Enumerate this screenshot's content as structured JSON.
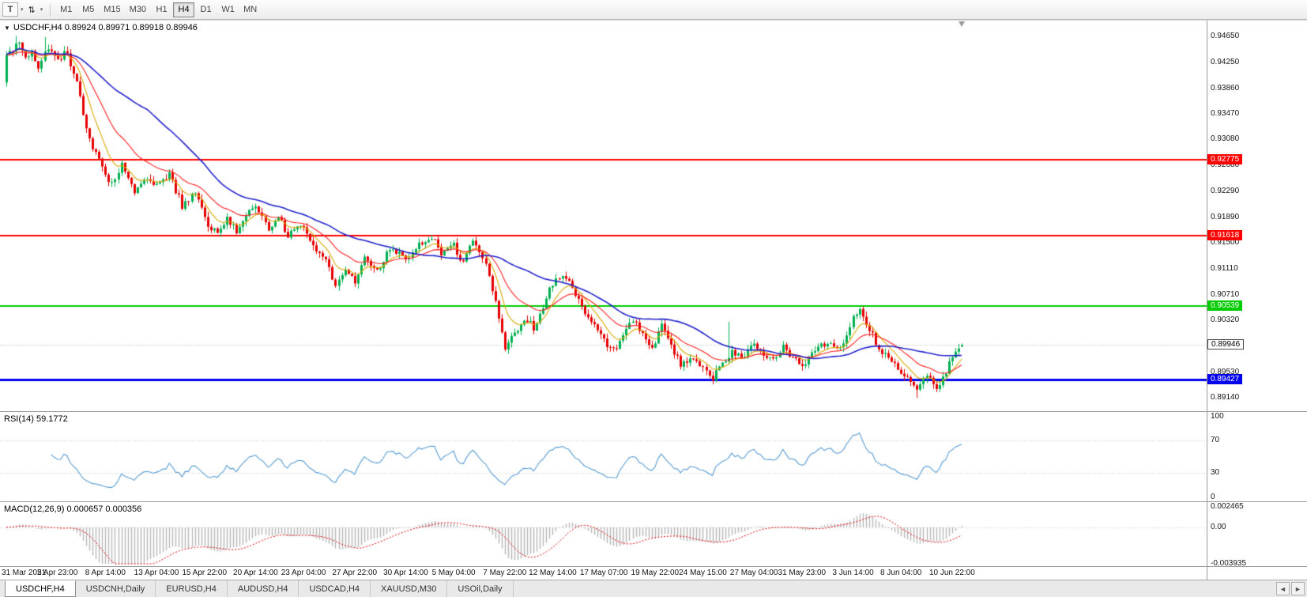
{
  "toolbar": {
    "icons": [
      {
        "name": "letter-t-icon",
        "glyph": "T"
      },
      {
        "name": "chart-tools-icon",
        "glyph": "⇅"
      }
    ],
    "timeframes": [
      "M1",
      "M5",
      "M15",
      "M30",
      "H1",
      "H4",
      "D1",
      "W1",
      "MN"
    ],
    "selected_timeframe": "H4"
  },
  "tabs": [
    "USDCHF,H4",
    "USDCNH,Daily",
    "EURUSD,H4",
    "AUDUSD,H4",
    "USDCAD,H4",
    "XAUUSD,M30",
    "USOil,Daily"
  ],
  "active_tab": "USDCHF,H4",
  "tab_scroll": {
    "left": "◄",
    "right": "►"
  },
  "chart_data": {
    "type": "candlestick",
    "symbol": "USDCHF",
    "timeframe": "H4",
    "title": "USDCHF,H4  0.89924 0.89971 0.89918 0.89946",
    "ohlc": {
      "open": 0.89924,
      "high": 0.89971,
      "low": 0.89918,
      "close": 0.89946
    },
    "current_price": 0.89946,
    "current_price_label": "0.89946",
    "price_axis_labels": [
      "0.94650",
      "0.94250",
      "0.93860",
      "0.93470",
      "0.93080",
      "0.92680",
      "0.92290",
      "0.91890",
      "0.91500",
      "0.91110",
      "0.90710",
      "0.90320",
      "0.89530",
      "0.89140"
    ],
    "price_range": [
      0.8894,
      0.9489
    ],
    "horizontal_lines": [
      {
        "price": 0.92775,
        "label": "0.92775",
        "color": "#ff0000",
        "width": 2
      },
      {
        "price": 0.91618,
        "label": "0.91618",
        "color": "#ff0000",
        "width": 2
      },
      {
        "price": 0.90539,
        "label": "0.90539",
        "color": "#00cc00",
        "width": 2
      },
      {
        "price": 0.89427,
        "label": "0.89427",
        "color": "#0000ee",
        "width": 3
      }
    ],
    "bar_count": 300,
    "shift_ratio": 0.797,
    "up_color": "#00b050",
    "down_color": "#e60000",
    "moving_averages": [
      {
        "period": 8,
        "type": "ema",
        "color": "#d9a800"
      },
      {
        "period": 20,
        "type": "ema",
        "color": "#ff2020"
      },
      {
        "period": 45,
        "type": "sma",
        "color": "#2222cc"
      }
    ],
    "price_path": [
      [
        0,
        0.9435
      ],
      [
        2,
        0.9446
      ],
      [
        4,
        0.9452
      ],
      [
        6,
        0.9428
      ],
      [
        8,
        0.9444
      ],
      [
        10,
        0.9418
      ],
      [
        13,
        0.9448
      ],
      [
        16,
        0.9432
      ],
      [
        19,
        0.944
      ],
      [
        22,
        0.9393
      ],
      [
        26,
        0.9308
      ],
      [
        30,
        0.9262
      ],
      [
        33,
        0.924
      ],
      [
        36,
        0.9268
      ],
      [
        40,
        0.9226
      ],
      [
        44,
        0.9252
      ],
      [
        47,
        0.9236
      ],
      [
        51,
        0.9256
      ],
      [
        55,
        0.9206
      ],
      [
        59,
        0.9226
      ],
      [
        62,
        0.9186
      ],
      [
        66,
        0.9162
      ],
      [
        69,
        0.919
      ],
      [
        72,
        0.9166
      ],
      [
        75,
        0.919
      ],
      [
        78,
        0.9206
      ],
      [
        82,
        0.9172
      ],
      [
        85,
        0.9192
      ],
      [
        88,
        0.9162
      ],
      [
        93,
        0.9176
      ],
      [
        96,
        0.915
      ],
      [
        100,
        0.912
      ],
      [
        103,
        0.9086
      ],
      [
        106,
        0.911
      ],
      [
        109,
        0.9092
      ],
      [
        112,
        0.913
      ],
      [
        116,
        0.9106
      ],
      [
        120,
        0.9142
      ],
      [
        125,
        0.9126
      ],
      [
        129,
        0.915
      ],
      [
        133,
        0.916
      ],
      [
        136,
        0.9132
      ],
      [
        140,
        0.9146
      ],
      [
        143,
        0.912
      ],
      [
        146,
        0.9156
      ],
      [
        149,
        0.913
      ],
      [
        152,
        0.908
      ],
      [
        156,
        0.8992
      ],
      [
        159,
        0.9012
      ],
      [
        162,
        0.9036
      ],
      [
        165,
        0.9022
      ],
      [
        168,
        0.9052
      ],
      [
        171,
        0.909
      ],
      [
        174,
        0.9104
      ],
      [
        177,
        0.908
      ],
      [
        180,
        0.9052
      ],
      [
        183,
        0.9032
      ],
      [
        187,
        0.9002
      ],
      [
        190,
        0.8986
      ],
      [
        193,
        0.9012
      ],
      [
        196,
        0.9032
      ],
      [
        199,
        0.9012
      ],
      [
        202,
        0.8992
      ],
      [
        205,
        0.9022
      ],
      [
        208,
        0.8996
      ],
      [
        211,
        0.8962
      ],
      [
        214,
        0.8976
      ],
      [
        218,
        0.8956
      ],
      [
        221,
        0.8946
      ],
      [
        224,
        0.8966
      ],
      [
        227,
        0.8986
      ],
      [
        230,
        0.8976
      ],
      [
        234,
        0.8996
      ],
      [
        237,
        0.8982
      ],
      [
        240,
        0.8972
      ],
      [
        243,
        0.899
      ],
      [
        246,
        0.8976
      ],
      [
        249,
        0.8962
      ],
      [
        252,
        0.8986
      ],
      [
        255,
        0.8996
      ],
      [
        258,
        0.9
      ],
      [
        261,
        0.8986
      ],
      [
        265,
        0.904
      ],
      [
        267,
        0.9052
      ],
      [
        270,
        0.902
      ],
      [
        273,
        0.899
      ],
      [
        276,
        0.8972
      ],
      [
        280,
        0.8956
      ],
      [
        283,
        0.8936
      ],
      [
        285,
        0.8922
      ],
      [
        288,
        0.895
      ],
      [
        291,
        0.8932
      ],
      [
        293,
        0.8946
      ],
      [
        296,
        0.8976
      ],
      [
        298,
        0.899
      ],
      [
        299,
        0.89946
      ]
    ],
    "wick_marks": [
      {
        "bar": 3,
        "type": "high",
        "price": 0.94655
      },
      {
        "bar": 12,
        "type": "high",
        "price": 0.9464
      },
      {
        "bar": 156,
        "type": "low",
        "price": 0.8985
      },
      {
        "bar": 226,
        "type": "high",
        "price": 0.903
      },
      {
        "bar": 285,
        "type": "low",
        "price": 0.89142
      }
    ],
    "x_labels": [
      "31 Mar 2021",
      "5 Apr 23:00",
      "8 Apr 14:00",
      "13 Apr 04:00",
      "15 Apr 22:00",
      "20 Apr 14:00",
      "23 Apr 04:00",
      "27 Apr 22:00",
      "30 Apr 14:00",
      "5 May 04:00",
      "7 May 22:00",
      "12 May 14:00",
      "17 May 07:00",
      "19 May 22:00",
      "24 May 15:00",
      "27 May 04:00",
      "31 May 23:00",
      "3 Jun 14:00",
      "8 Jun 04:00",
      "10 Jun 22:00"
    ],
    "rsi": {
      "title": "RSI(14) 59.1772",
      "period": 14,
      "value": 59.1772,
      "levels": [
        "100",
        "70",
        "30",
        "0"
      ],
      "level_values": [
        100,
        70,
        30,
        0
      ],
      "dotted_levels": [
        70,
        30
      ],
      "color": "#569bd2",
      "range": [
        0,
        100
      ]
    },
    "macd": {
      "title": "MACD(12,26,9) 0.000657 0.000356",
      "fast": 12,
      "slow": 26,
      "signal": 9,
      "values": [
        0.000657,
        0.000356
      ],
      "levels": [
        "0.002465",
        "0.00",
        "-0.003935"
      ],
      "level_values": [
        0.002465,
        0,
        -0.003935
      ],
      "histogram_color": "#b6b6b6",
      "signal_color": "#e00000",
      "range": [
        -0.003935,
        0.002465
      ]
    }
  }
}
